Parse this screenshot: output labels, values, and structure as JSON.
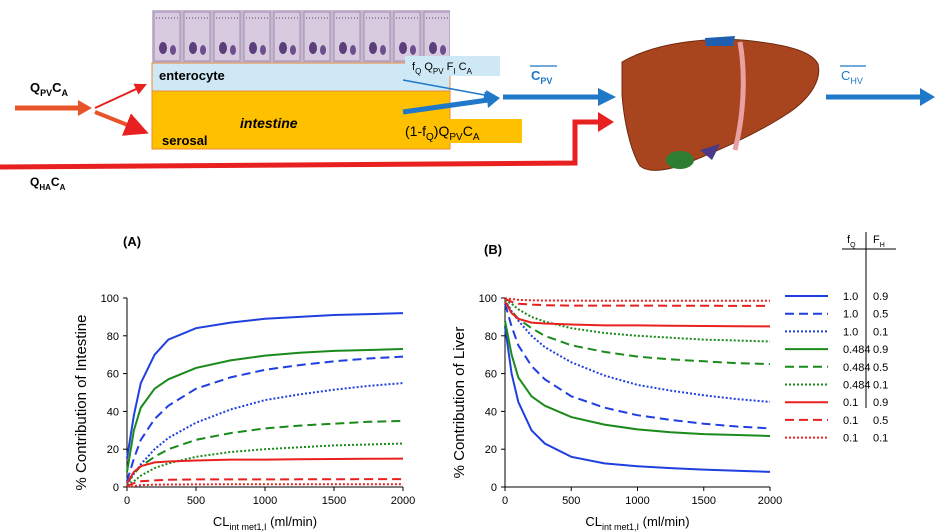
{
  "diagram": {
    "inflow": [
      "Q",
      "PV",
      "C",
      "A"
    ],
    "enterocyte": "enterocyte",
    "intestine": "intestine",
    "serosal": "serosal",
    "enterocyte_flow": [
      "f",
      "Q",
      " Q",
      "PV",
      " F",
      "I",
      " C",
      "A"
    ],
    "bypass_flow": [
      "(1-f",
      "Q",
      ")Q",
      "PV",
      "C",
      "A"
    ],
    "portal": [
      "C",
      "PV"
    ],
    "hepatic": [
      "C",
      "HV"
    ],
    "arterial": [
      "Q",
      "HA",
      "C",
      "A"
    ]
  },
  "legend": {
    "header": [
      [
        "f",
        "Q"
      ],
      [
        "F",
        "H"
      ]
    ]
  },
  "chart_data": [
    {
      "type": "line",
      "panel_label": "(A)",
      "y_label": "% Contribution of Intestine",
      "x_label": [
        "CL",
        "int met1,I",
        " (ml/min)"
      ],
      "x": [
        0,
        50,
        100,
        200,
        300,
        500,
        750,
        1000,
        1250,
        1500,
        1750,
        2000
      ],
      "xlim": [
        0,
        2000
      ],
      "xticks": [
        0,
        500,
        1000,
        1500,
        2000
      ],
      "ylim": [
        0,
        100
      ],
      "yticks": [
        0,
        20,
        40,
        60,
        80,
        100
      ],
      "series": [
        {
          "f_Q": "1.0",
          "F_H": "0.9",
          "color": "#1f3fe0",
          "dash": "solid",
          "values": [
            15,
            38,
            55,
            70,
            78,
            84,
            87,
            89,
            90,
            91,
            91.5,
            92
          ]
        },
        {
          "f_Q": "1.0",
          "F_H": "0.5",
          "color": "#1f3fe0",
          "dash": "dashed",
          "values": [
            3,
            15,
            25,
            36,
            43,
            52,
            58,
            62,
            64.5,
            66.5,
            68,
            69
          ]
        },
        {
          "f_Q": "1.0",
          "F_H": "0.1",
          "color": "#1f3fe0",
          "dash": "dotted",
          "values": [
            1,
            7,
            12,
            20,
            26,
            34,
            41,
            46,
            49,
            51.5,
            53.5,
            55
          ]
        },
        {
          "f_Q": "0.484",
          "F_H": "0.9",
          "color": "#1a8a1a",
          "dash": "solid",
          "values": [
            8,
            30,
            42,
            52,
            57,
            63,
            67,
            69.5,
            71,
            72,
            72.5,
            73
          ]
        },
        {
          "f_Q": "0.484",
          "F_H": "0.5",
          "color": "#1a8a1a",
          "dash": "dashed",
          "values": [
            2,
            7,
            11,
            16,
            20,
            25,
            28.5,
            31,
            32.5,
            33.5,
            34.5,
            35
          ]
        },
        {
          "f_Q": "0.484",
          "F_H": "0.1",
          "color": "#1a8a1a",
          "dash": "dotted",
          "values": [
            1,
            3,
            6,
            10,
            12.5,
            16,
            18.5,
            20,
            21,
            22,
            22.5,
            23
          ]
        },
        {
          "f_Q": "0.1",
          "F_H": "0.9",
          "color": "#e82020",
          "dash": "solid",
          "values": [
            2,
            8,
            11,
            13,
            13.5,
            14,
            14.5,
            14.5,
            14.7,
            14.8,
            14.9,
            15
          ]
        },
        {
          "f_Q": "0.1",
          "F_H": "0.5",
          "color": "#e82020",
          "dash": "dashed",
          "values": [
            0.5,
            2,
            3,
            3.5,
            3.8,
            4,
            4,
            4,
            4.1,
            4.1,
            4.2,
            4.2
          ]
        },
        {
          "f_Q": "0.1",
          "F_H": "0.1",
          "color": "#e82020",
          "dash": "dotted",
          "values": [
            0.2,
            0.5,
            1,
            1.2,
            1.3,
            1.4,
            1.5,
            1.5,
            1.5,
            1.5,
            1.5,
            1.5
          ]
        }
      ]
    },
    {
      "type": "line",
      "panel_label": "(B)",
      "y_label": "% Contribution of Liver",
      "x_label": [
        "CL",
        "int met1,I",
        " (ml/min)"
      ],
      "x": [
        0,
        50,
        100,
        200,
        300,
        500,
        750,
        1000,
        1250,
        1500,
        1750,
        2000
      ],
      "xlim": [
        0,
        2000
      ],
      "xticks": [
        0,
        500,
        1000,
        1500,
        2000
      ],
      "ylim": [
        0,
        100
      ],
      "yticks": [
        0,
        20,
        40,
        60,
        80,
        100
      ],
      "series": [
        {
          "f_Q": "1.0",
          "F_H": "0.9",
          "color": "#1f3fe0",
          "dash": "solid",
          "values": [
            85,
            60,
            45,
            30,
            23,
            16,
            12.5,
            11,
            10,
            9.2,
            8.6,
            8
          ]
        },
        {
          "f_Q": "1.0",
          "F_H": "0.5",
          "color": "#1f3fe0",
          "dash": "dashed",
          "values": [
            97,
            85,
            75,
            64,
            57,
            48,
            42,
            38,
            35.5,
            33.5,
            32,
            31
          ]
        },
        {
          "f_Q": "1.0",
          "F_H": "0.1",
          "color": "#1f3fe0",
          "dash": "dotted",
          "values": [
            99,
            93,
            88,
            80,
            74,
            66,
            59,
            54,
            51,
            48.5,
            46.5,
            45
          ]
        },
        {
          "f_Q": "0.484",
          "F_H": "0.9",
          "color": "#1a8a1a",
          "dash": "solid",
          "values": [
            88,
            70,
            58,
            48,
            43,
            37,
            33,
            30.5,
            29,
            28,
            27.5,
            27
          ]
        },
        {
          "f_Q": "0.484",
          "F_H": "0.5",
          "color": "#1a8a1a",
          "dash": "dashed",
          "values": [
            98,
            93,
            89,
            84,
            80,
            75,
            71.5,
            69,
            67.5,
            66.5,
            65.5,
            65
          ]
        },
        {
          "f_Q": "0.484",
          "F_H": "0.1",
          "color": "#1a8a1a",
          "dash": "dotted",
          "values": [
            99,
            97,
            94,
            90,
            87.5,
            84,
            81.5,
            80,
            79,
            78,
            77.5,
            77
          ]
        },
        {
          "f_Q": "0.1",
          "F_H": "0.9",
          "color": "#e82020",
          "dash": "solid",
          "values": [
            98,
            92,
            89,
            87,
            86.5,
            86,
            85.5,
            85.5,
            85.3,
            85.2,
            85.1,
            85
          ]
        },
        {
          "f_Q": "0.1",
          "F_H": "0.5",
          "color": "#e82020",
          "dash": "dashed",
          "values": [
            99.5,
            98,
            97,
            96.5,
            96.2,
            96,
            96,
            96,
            95.9,
            95.9,
            95.8,
            95.8
          ]
        },
        {
          "f_Q": "0.1",
          "F_H": "0.1",
          "color": "#e82020",
          "dash": "dotted",
          "values": [
            99.8,
            99.5,
            99,
            98.8,
            98.7,
            98.6,
            98.5,
            98.5,
            98.5,
            98.5,
            98.5,
            98.5
          ]
        }
      ]
    }
  ]
}
